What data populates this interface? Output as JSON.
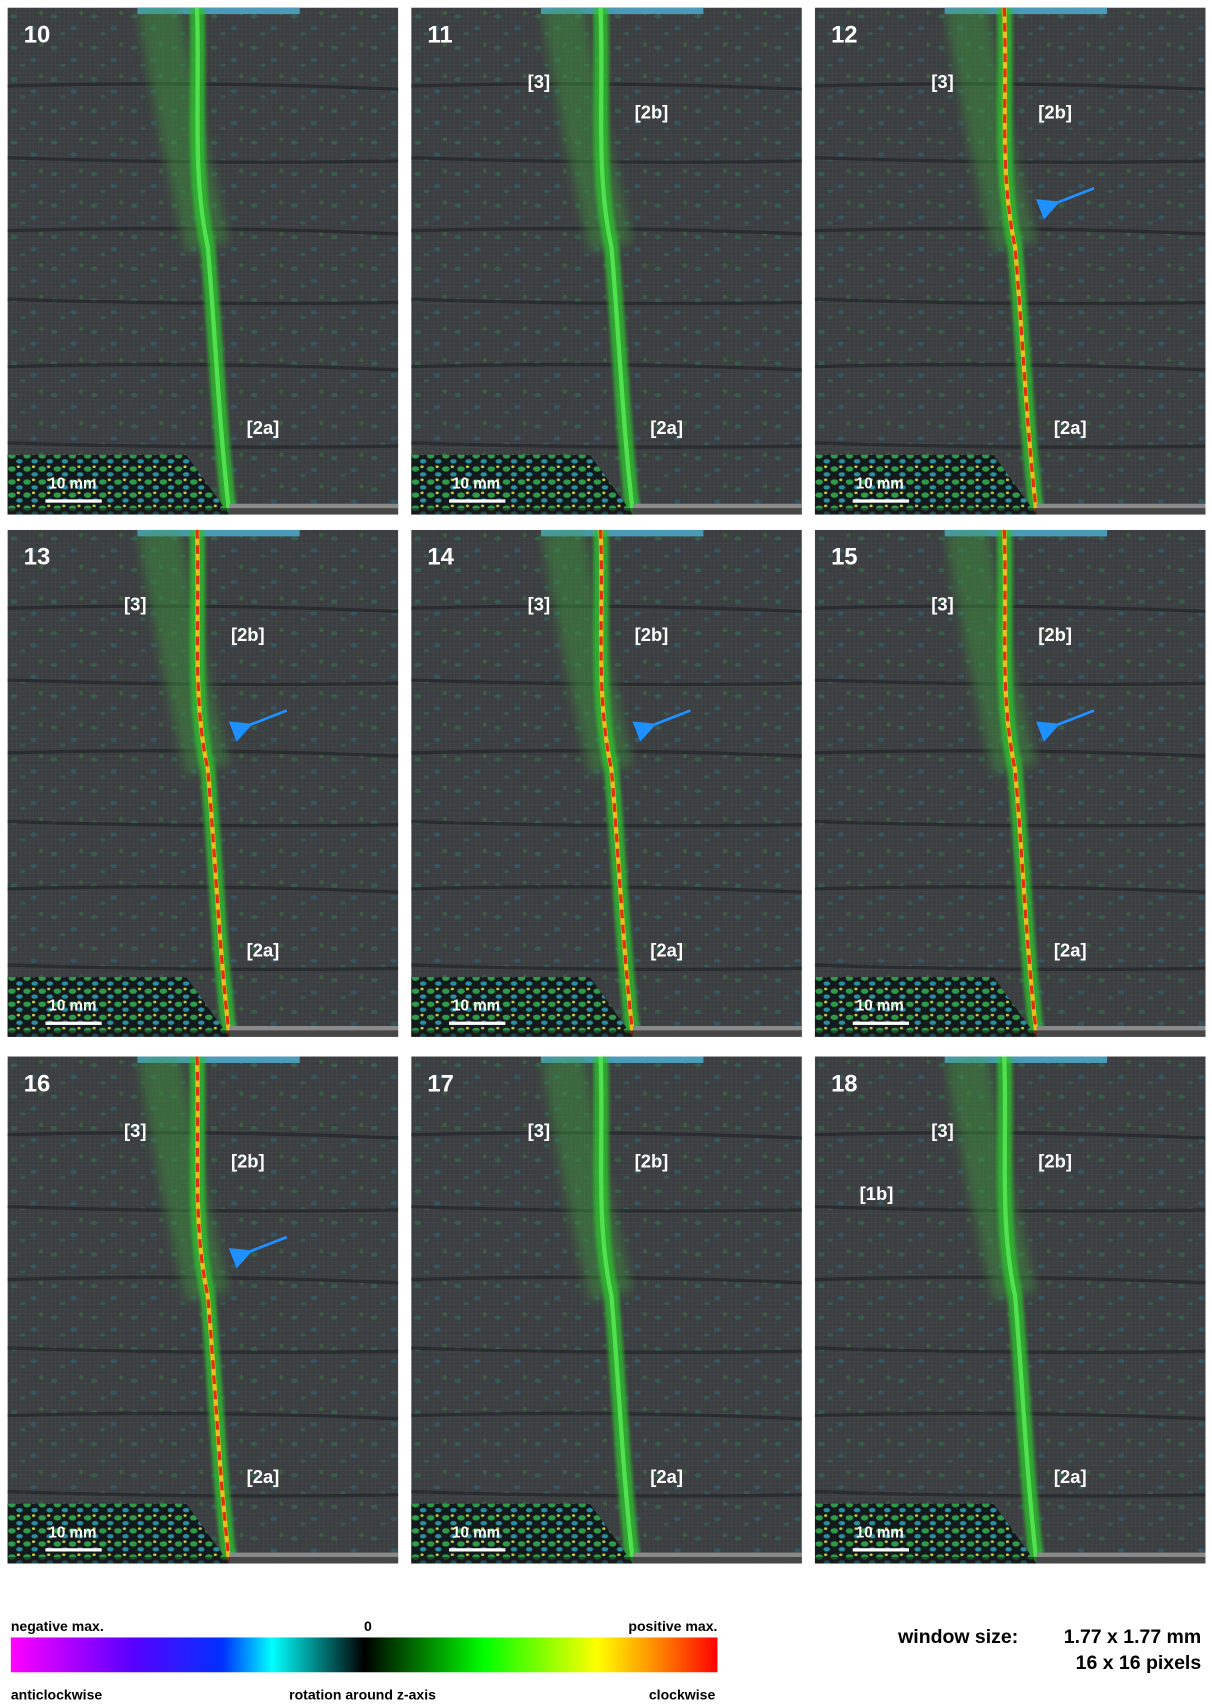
{
  "panels": [
    {
      "number": "10",
      "labels": [
        "[2a]"
      ],
      "scale_bar": "10 mm"
    },
    {
      "number": "11",
      "labels": [
        "[3]",
        "[2b]",
        "[2a]"
      ],
      "scale_bar": "10 mm"
    },
    {
      "number": "12",
      "labels": [
        "[3]",
        "[2b]",
        "[2a]"
      ],
      "scale_bar": "10 mm"
    },
    {
      "number": "13",
      "labels": [
        "[3]",
        "[2b]",
        "[2a]"
      ],
      "scale_bar": "10 mm"
    },
    {
      "number": "14",
      "labels": [
        "[3]",
        "[2b]",
        "[2a]"
      ],
      "scale_bar": "10 mm"
    },
    {
      "number": "15",
      "labels": [
        "[3]",
        "[2b]",
        "[2a]"
      ],
      "scale_bar": "10 mm"
    },
    {
      "number": "16",
      "labels": [
        "[3]",
        "[2b]",
        "[2a]"
      ],
      "scale_bar": "10 mm"
    },
    {
      "number": "17",
      "labels": [
        "[3]",
        "[2b]",
        "[2a]"
      ],
      "scale_bar": "10 mm"
    },
    {
      "number": "18",
      "labels": [
        "[3]",
        "[2b]",
        "[1b]",
        "[2a]"
      ],
      "scale_bar": "10 mm"
    }
  ],
  "colorbar": {
    "top_left": "negative max.",
    "top_center": "0",
    "top_right": "positive max.",
    "bottom_left": "anticlockwise",
    "bottom_center": "rotation around z-axis",
    "bottom_right": "clockwise"
  },
  "window": {
    "label": "window size:",
    "size_mm": "1.77 x 1.77 mm",
    "size_px": "16 x 16 pixels"
  }
}
